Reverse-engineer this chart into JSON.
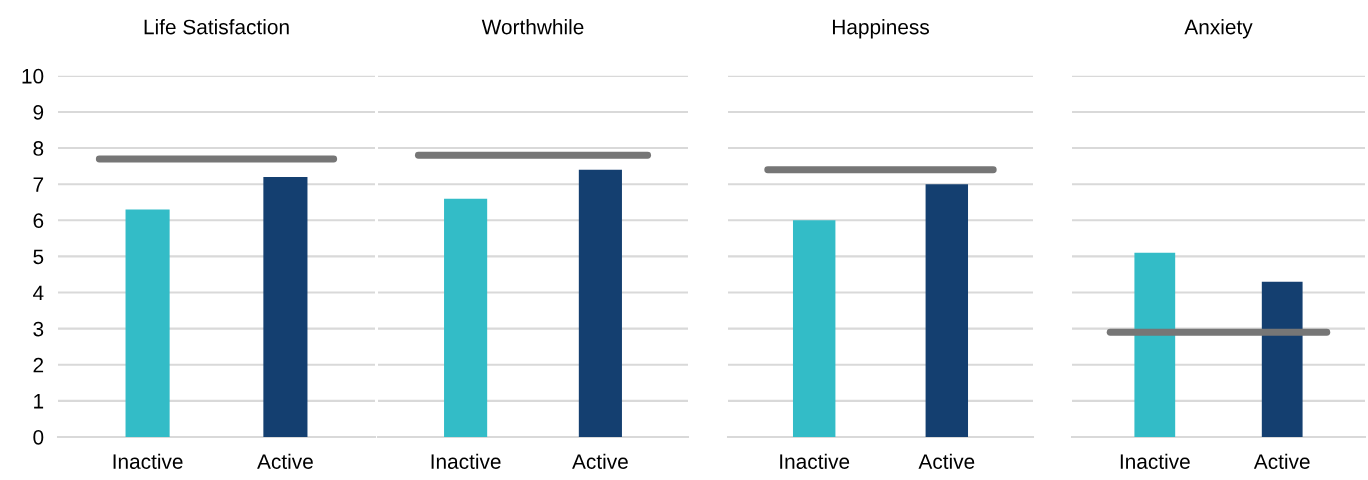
{
  "chart_data": [
    {
      "type": "bar",
      "title": "Life Satisfaction",
      "categories": [
        "Inactive",
        "Active"
      ],
      "values": [
        6.3,
        7.2
      ],
      "colors": [
        "#33bcc7",
        "#143f70"
      ],
      "ylim": [
        0,
        10
      ],
      "yticks": [
        0,
        1,
        2,
        3,
        4,
        5,
        6,
        7,
        8,
        9,
        10
      ],
      "grid": "y",
      "ref_lines": [
        {
          "axis": "y",
          "value": 7.7,
          "color": "#767676"
        }
      ]
    },
    {
      "type": "bar",
      "title": "Worthwhile",
      "categories": [
        "Inactive",
        "Active"
      ],
      "values": [
        6.6,
        7.4
      ],
      "colors": [
        "#33bcc7",
        "#143f70"
      ],
      "ylim": [
        0,
        10
      ],
      "yticks": [
        0,
        1,
        2,
        3,
        4,
        5,
        6,
        7,
        8,
        9,
        10
      ],
      "tick_labels": "x",
      "grid": "y",
      "ref_lines": [
        {
          "axis": "y",
          "value": 7.8,
          "color": "#767676"
        }
      ]
    },
    {
      "type": "bar",
      "title": "Happiness",
      "categories": [
        "Inactive",
        "Active"
      ],
      "values": [
        6.0,
        7.0
      ],
      "colors": [
        "#33bcc7",
        "#143f70"
      ],
      "ylim": [
        0,
        10
      ],
      "yticks": [
        0,
        1,
        2,
        3,
        4,
        5,
        6,
        7,
        8,
        9,
        10
      ],
      "tick_labels": "x",
      "grid": "y",
      "ref_lines": [
        {
          "axis": "y",
          "value": 7.4,
          "color": "#767676"
        }
      ]
    },
    {
      "type": "bar",
      "title": "Anxiety",
      "categories": [
        "Inactive",
        "Active"
      ],
      "values": [
        5.1,
        4.3
      ],
      "colors": [
        "#33bcc7",
        "#143f70"
      ],
      "ylim": [
        0,
        10
      ],
      "yticks": [
        0,
        1,
        2,
        3,
        4,
        5,
        6,
        7,
        8,
        9,
        10
      ],
      "tick_labels": "x",
      "grid": "y",
      "ref_lines": [
        {
          "axis": "y",
          "value": 2.9,
          "color": "#767676"
        }
      ]
    }
  ]
}
